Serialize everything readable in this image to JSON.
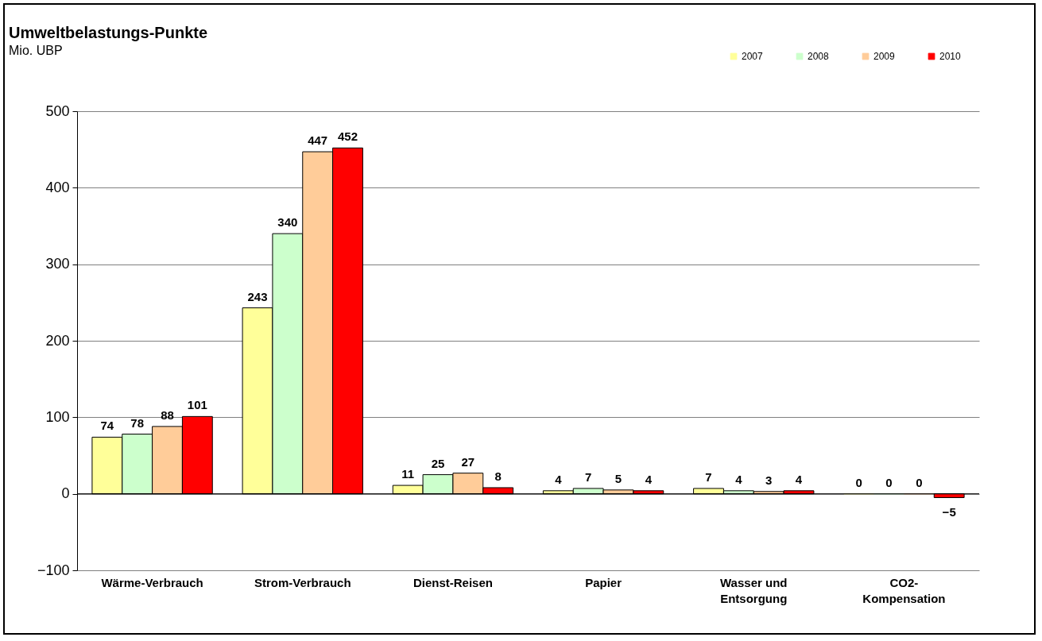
{
  "chart_data": {
    "type": "bar",
    "title": "Umweltbelastungs-Punkte",
    "subtitle": "Mio. UBP",
    "categories": [
      "Wärme-Verbrauch",
      "Strom-Verbrauch",
      "Dienst-Reisen",
      "Papier",
      "Wasser und Entsorgung",
      "CO2-Kompensation"
    ],
    "series": [
      {
        "name": "2007",
        "color": "#ffff99",
        "values": [
          74,
          243,
          11,
          4,
          7,
          0
        ]
      },
      {
        "name": "2008",
        "color": "#ccffcc",
        "values": [
          78,
          340,
          25,
          7,
          4,
          0
        ]
      },
      {
        "name": "2009",
        "color": "#ffcc99",
        "values": [
          88,
          447,
          27,
          5,
          3,
          0
        ]
      },
      {
        "name": "2010",
        "color": "#ff0000",
        "values": [
          101,
          452,
          8,
          4,
          4,
          -5
        ]
      }
    ],
    "ylim": [
      -100,
      500
    ],
    "yticks": [
      -100,
      0,
      100,
      200,
      300,
      400,
      500
    ],
    "grid": "y",
    "legend": "top right",
    "data_labels": true
  }
}
